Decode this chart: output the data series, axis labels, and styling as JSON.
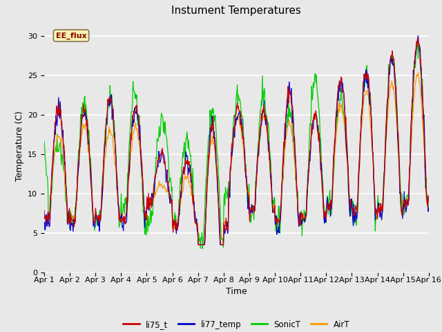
{
  "title": "Instument Temperatures",
  "xlabel": "Time",
  "ylabel": "Temperature (C)",
  "ylim": [
    0,
    32
  ],
  "yticks": [
    0,
    5,
    10,
    15,
    20,
    25,
    30
  ],
  "x_tick_labels": [
    "Apr 1",
    "Apr 2",
    "Apr 3",
    "Apr 4",
    "Apr 5",
    "Apr 6",
    "Apr 7",
    "Apr 8",
    "Apr 9",
    "Apr 10",
    "Apr 11",
    "Apr 12",
    "Apr 13",
    "Apr 14",
    "Apr 15",
    "Apr 16"
  ],
  "colors": {
    "li75_t": "#cc0000",
    "li77_temp": "#0000cc",
    "SonicT": "#00cc00",
    "AirT": "#ff9900"
  },
  "annotation_text": "EE_flux",
  "background_color": "#e8e8e8",
  "grid_color": "#ffffff",
  "title_fontsize": 11,
  "label_fontsize": 9,
  "tick_fontsize": 8,
  "day_peaks": [
    21,
    20.5,
    22,
    21,
    15,
    14,
    22.5,
    21,
    20.5,
    23,
    20,
    24.5,
    25.5,
    27.5,
    29.5
  ],
  "day_mins": [
    7,
    6.5,
    7,
    7,
    9,
    6,
    4,
    10,
    8,
    6.5,
    7,
    8.5,
    7.5,
    8,
    9
  ],
  "sonic_peaks": [
    16,
    22,
    22,
    21,
    18,
    17,
    21,
    22.5,
    22.5,
    20.5,
    24.5,
    22,
    25.5,
    27.5,
    28.5
  ],
  "airt_peaks": [
    17.5,
    18.5,
    18,
    18.5,
    11,
    12,
    21,
    19.5,
    19.5,
    19,
    20,
    21,
    23,
    24,
    25
  ]
}
